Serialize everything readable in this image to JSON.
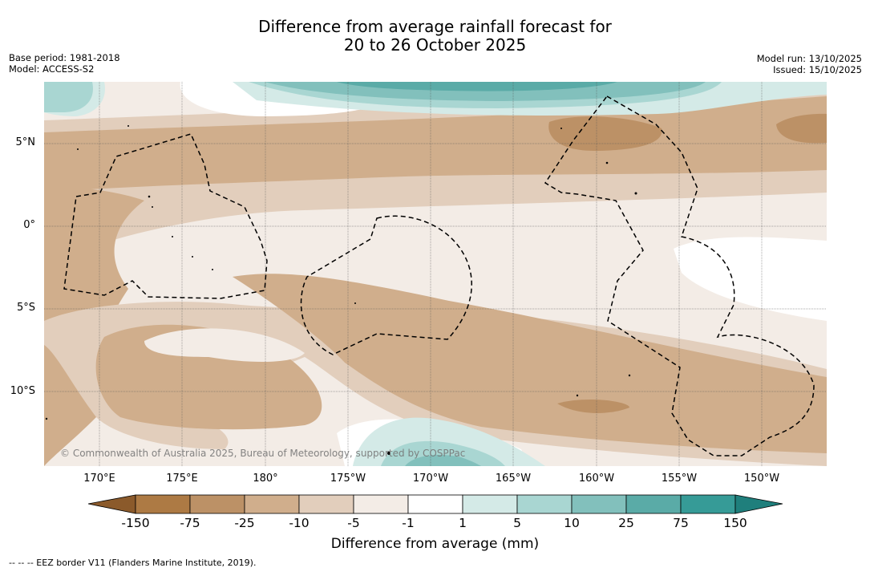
{
  "title": {
    "line1": "Difference from average rainfall forecast for",
    "line2": "20 to 26 October 2025"
  },
  "meta_left": {
    "base_period": "Base period: 1981-2018",
    "model": "Model: ACCESS-S2"
  },
  "meta_right": {
    "model_run": "Model run: 13/10/2025",
    "issued": "Issued: 15/10/2025"
  },
  "map": {
    "longitude_labels": [
      "170°E",
      "175°E",
      "180°",
      "175°W",
      "170°W",
      "165°W",
      "160°W",
      "155°W",
      "150°W"
    ],
    "latitude_labels": [
      "5°N",
      "0°",
      "5°S",
      "10°S"
    ],
    "copyright": "© Commonwealth of Australia 2025, Bureau of Meteorology, supported by COSPPac"
  },
  "colorbar": {
    "title": "Difference from average (mm)",
    "ticks": [
      "-150",
      "-75",
      "-25",
      "-10",
      "-5",
      "-1",
      "1",
      "5",
      "10",
      "25",
      "75",
      "150"
    ],
    "colors": [
      "#8b5a2b",
      "#ad7a44",
      "#bc9166",
      "#d0ae8c",
      "#e2cebc",
      "#f3ece6",
      "#ffffff",
      "#d4eae7",
      "#a9d6d2",
      "#82c0bc",
      "#5aaba7",
      "#369b97",
      "#1f7f7c"
    ]
  },
  "footer": "--  --  -- EEZ border V11 (Flanders Marine Institute, 2019)."
}
